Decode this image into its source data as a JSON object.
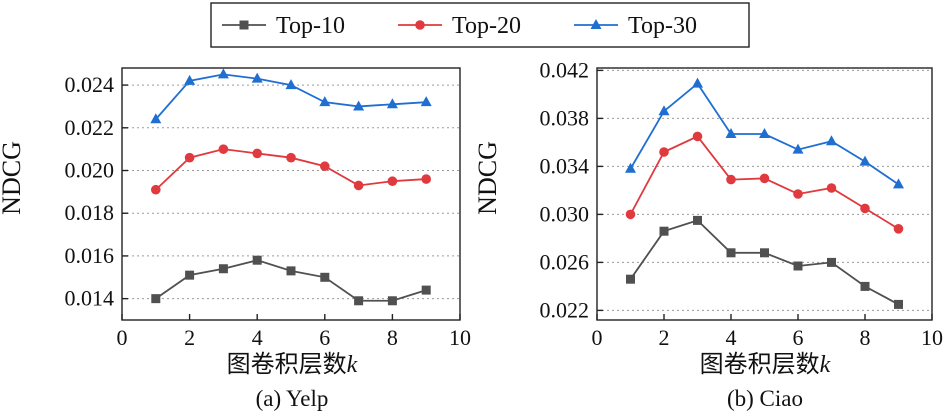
{
  "legend": [
    "Top-10",
    "Top-20",
    "Top-30"
  ],
  "series_colors": [
    "#505050",
    "#e0393e",
    "#1f6fd1"
  ],
  "series_markers": [
    "square",
    "circle",
    "triangle"
  ],
  "chart_data": [
    {
      "type": "line",
      "caption": "(a) Yelp",
      "xlabel": "图卷积层数",
      "xlabel_var": "k",
      "ylabel": "NDCG",
      "xlim": [
        0,
        10
      ],
      "ylim": [
        0.013,
        0.0248
      ],
      "xticks": [
        "0",
        "2",
        "4",
        "6",
        "8",
        "10"
      ],
      "yticks": [
        "0.014",
        "0.016",
        "0.018",
        "0.020",
        "0.022",
        "0.024"
      ],
      "x": [
        1,
        2,
        3,
        4,
        5,
        6,
        7,
        8,
        9
      ],
      "series": [
        {
          "name": "Top-10",
          "values": [
            0.014,
            0.0151,
            0.0154,
            0.0158,
            0.0153,
            0.015,
            0.0139,
            0.0139,
            0.0144
          ]
        },
        {
          "name": "Top-20",
          "values": [
            0.0191,
            0.0206,
            0.021,
            0.0208,
            0.0206,
            0.0202,
            0.0193,
            0.0195,
            0.0196
          ]
        },
        {
          "name": "Top-30",
          "values": [
            0.0224,
            0.0242,
            0.0245,
            0.0243,
            0.024,
            0.0232,
            0.023,
            0.0231,
            0.0232
          ]
        }
      ],
      "grid": "horizontal-dotted"
    },
    {
      "type": "line",
      "caption": "(b) Ciao",
      "xlabel": "图卷积层数",
      "xlabel_var": "k",
      "ylabel": "NDCG",
      "xlim": [
        0,
        10
      ],
      "ylim": [
        0.0212,
        0.0422
      ],
      "xticks": [
        "0",
        "2",
        "4",
        "6",
        "8",
        "10"
      ],
      "yticks": [
        "0.022",
        "0.026",
        "0.030",
        "0.034",
        "0.038",
        "0.042"
      ],
      "x": [
        1,
        2,
        3,
        4,
        5,
        6,
        7,
        8,
        9
      ],
      "series": [
        {
          "name": "Top-10",
          "values": [
            0.0246,
            0.0286,
            0.0295,
            0.0268,
            0.0268,
            0.0257,
            0.026,
            0.024,
            0.0225
          ]
        },
        {
          "name": "Top-20",
          "values": [
            0.03,
            0.0352,
            0.0365,
            0.0329,
            0.033,
            0.0317,
            0.0322,
            0.0305,
            0.0288
          ]
        },
        {
          "name": "Top-30",
          "values": [
            0.0338,
            0.0386,
            0.0409,
            0.0367,
            0.0367,
            0.0354,
            0.0361,
            0.0344,
            0.0325
          ]
        }
      ],
      "grid": "horizontal-dotted"
    }
  ]
}
